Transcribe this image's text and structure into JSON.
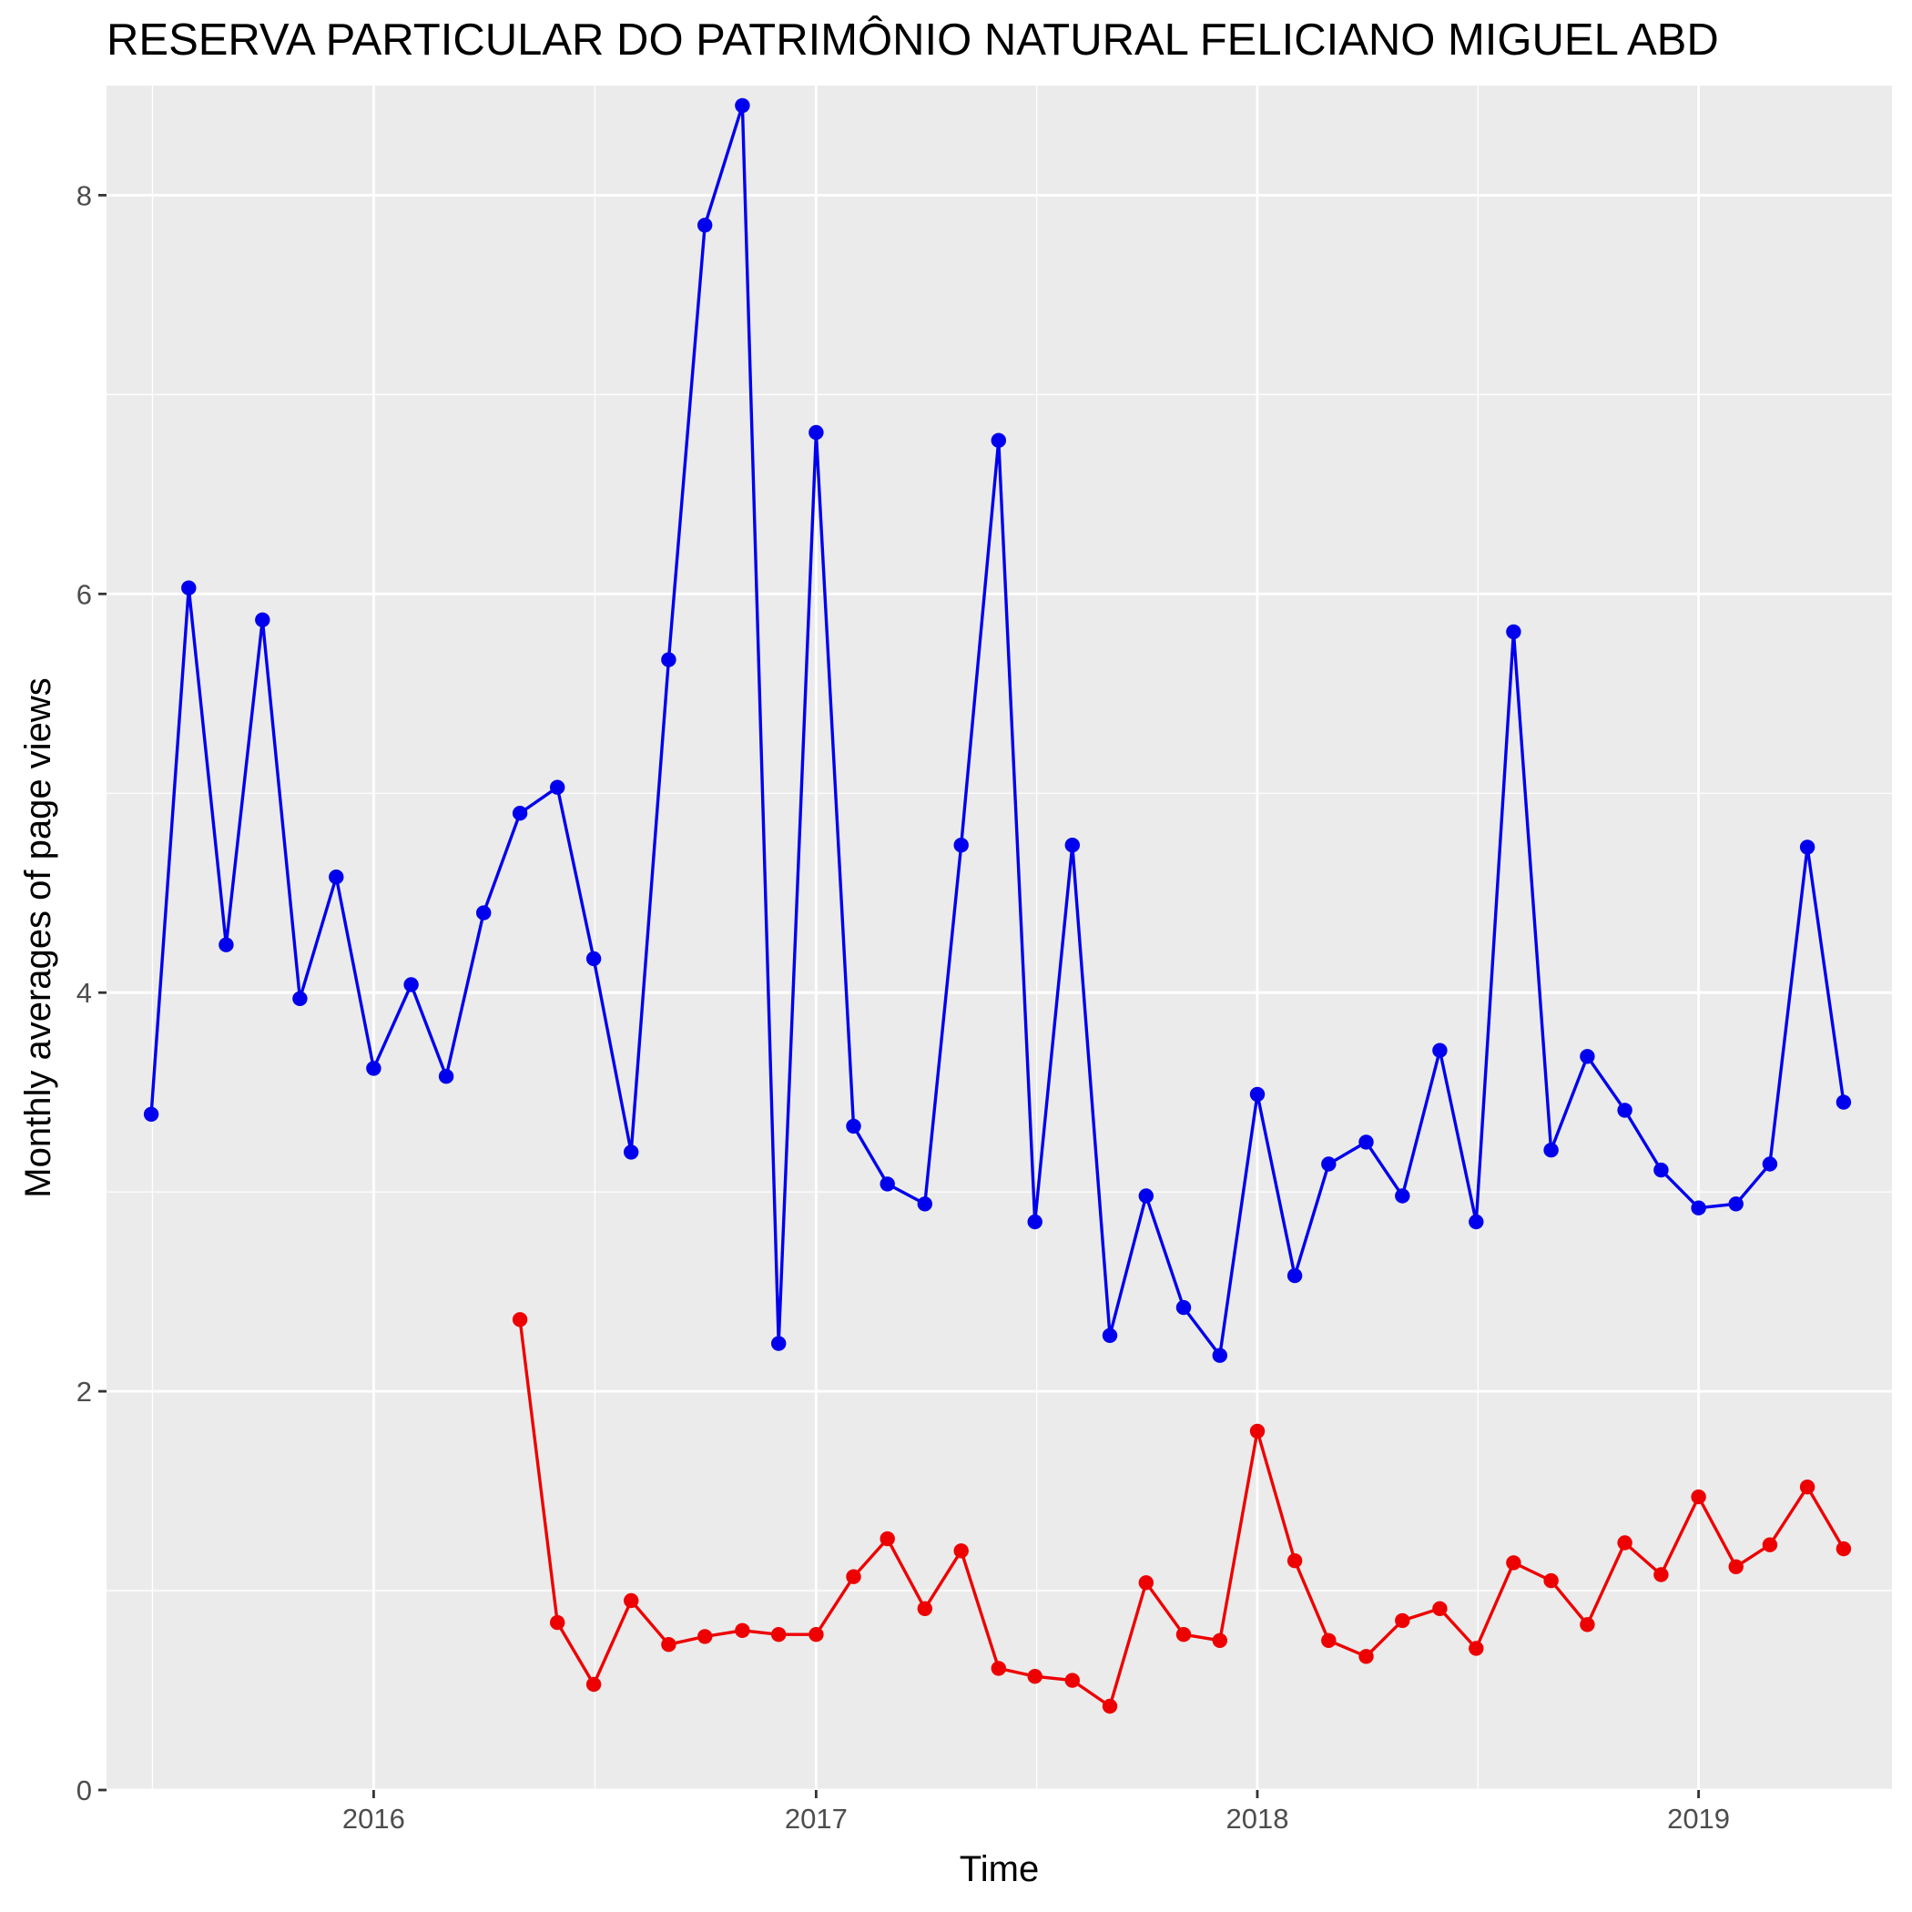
{
  "chart_data": {
    "type": "line",
    "title": "RESERVA PARTICULAR DO PATRIMÔNIO NATURAL FELICIANO MIGUEL ABD",
    "xlabel": "Time",
    "ylabel": "Monthly averages of page views",
    "x_axis": {
      "type": "date",
      "range": [
        "2015-05-25",
        "2019-06-10"
      ],
      "ticks": [
        "2016",
        "2017",
        "2018",
        "2019"
      ]
    },
    "y_axis": {
      "range": [
        0,
        8.55
      ],
      "ticks": [
        0,
        2,
        4,
        6,
        8
      ],
      "tick_labels": [
        "0",
        "2",
        "4",
        "6",
        "8"
      ]
    },
    "grid": true,
    "legend": "none",
    "colors": {
      "panel": "#ebebeb",
      "grid": "#ffffff",
      "tick": "#333333"
    },
    "series": [
      {
        "color": "#0000ee",
        "x": [
          "2015-07-01",
          "2015-08-01",
          "2015-09-01",
          "2015-10-01",
          "2015-11-01",
          "2015-12-01",
          "2016-01-01",
          "2016-02-01",
          "2016-03-01",
          "2016-04-01",
          "2016-05-01",
          "2016-06-01",
          "2016-07-01",
          "2016-08-01",
          "2016-09-01",
          "2016-10-01",
          "2016-11-01",
          "2016-12-01",
          "2017-01-01",
          "2017-02-01",
          "2017-03-01",
          "2017-04-01",
          "2017-05-01",
          "2017-06-01",
          "2017-07-01",
          "2017-08-01",
          "2017-09-01",
          "2017-10-01",
          "2017-11-01",
          "2017-12-01",
          "2018-01-01",
          "2018-02-01",
          "2018-03-01",
          "2018-04-01",
          "2018-05-01",
          "2018-06-01",
          "2018-07-01",
          "2018-08-01",
          "2018-09-01",
          "2018-10-01",
          "2018-11-01",
          "2018-12-01",
          "2019-01-01",
          "2019-02-01",
          "2019-03-01",
          "2019-04-01",
          "2019-05-01"
        ],
        "values": [
          3.39,
          6.03,
          4.24,
          5.87,
          3.97,
          4.58,
          3.62,
          4.04,
          3.58,
          4.4,
          4.9,
          5.03,
          4.17,
          3.2,
          5.67,
          7.85,
          8.45,
          2.24,
          6.81,
          3.33,
          3.04,
          2.94,
          4.74,
          6.77,
          2.85,
          4.74,
          2.28,
          2.98,
          2.42,
          2.18,
          3.49,
          2.58,
          3.14,
          3.25,
          2.98,
          3.71,
          2.85,
          5.81,
          3.21,
          3.68,
          3.41,
          3.11,
          2.92,
          2.94,
          3.14,
          4.73,
          3.45
        ]
      },
      {
        "color": "#ee0000",
        "x": [
          "2016-05-01",
          "2016-06-01",
          "2016-07-01",
          "2016-08-01",
          "2016-09-01",
          "2016-10-01",
          "2016-11-01",
          "2016-12-01",
          "2017-01-01",
          "2017-02-01",
          "2017-03-01",
          "2017-04-01",
          "2017-05-01",
          "2017-06-01",
          "2017-07-01",
          "2017-08-01",
          "2017-09-01",
          "2017-10-01",
          "2017-11-01",
          "2017-12-01",
          "2018-01-01",
          "2018-02-01",
          "2018-03-01",
          "2018-04-01",
          "2018-05-01",
          "2018-06-01",
          "2018-07-01",
          "2018-08-01",
          "2018-09-01",
          "2018-10-01",
          "2018-11-01",
          "2018-12-01",
          "2019-01-01",
          "2019-02-01",
          "2019-03-01",
          "2019-04-01",
          "2019-05-01"
        ],
        "values": [
          2.36,
          0.84,
          0.53,
          0.95,
          0.73,
          0.77,
          0.8,
          0.78,
          0.78,
          1.07,
          1.26,
          0.91,
          1.2,
          0.61,
          0.57,
          0.55,
          0.42,
          1.04,
          0.78,
          0.75,
          1.8,
          1.15,
          0.75,
          0.67,
          0.85,
          0.91,
          0.71,
          1.14,
          1.05,
          0.83,
          1.24,
          1.08,
          1.47,
          1.12,
          1.23,
          1.52,
          1.21
        ]
      }
    ]
  }
}
